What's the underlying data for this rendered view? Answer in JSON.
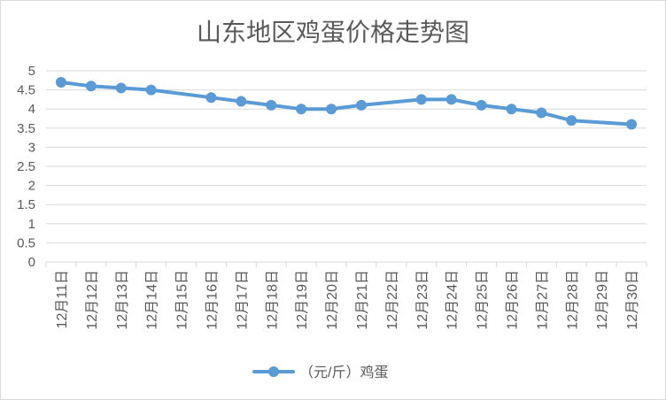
{
  "chart_data": {
    "type": "line",
    "title": "山东地区鸡蛋价格走势图",
    "xlabel": "",
    "ylabel": "",
    "categories": [
      "12月11日",
      "12月12日",
      "12月13日",
      "12月14日",
      "12月15日",
      "12月16日",
      "12月17日",
      "12月18日",
      "12月19日",
      "12月20日",
      "12月21日",
      "12月22日",
      "12月23日",
      "12月24日",
      "12月25日",
      "12月26日",
      "12月27日",
      "12月28日",
      "12月29日",
      "12月30日"
    ],
    "series": [
      {
        "name": "（元/斤）鸡蛋",
        "color": "#5B9BD5",
        "values": [
          4.7,
          4.6,
          4.55,
          4.5,
          null,
          4.3,
          4.2,
          4.1,
          4.0,
          4.0,
          4.1,
          null,
          4.25,
          4.25,
          4.1,
          4.0,
          3.9,
          3.7,
          null,
          3.6
        ]
      }
    ],
    "ylim": [
      0,
      5
    ],
    "yticks": [
      0,
      0.5,
      1,
      1.5,
      2,
      2.5,
      3,
      3.5,
      4,
      4.5,
      5
    ],
    "grid": true,
    "legend": "bottom"
  }
}
